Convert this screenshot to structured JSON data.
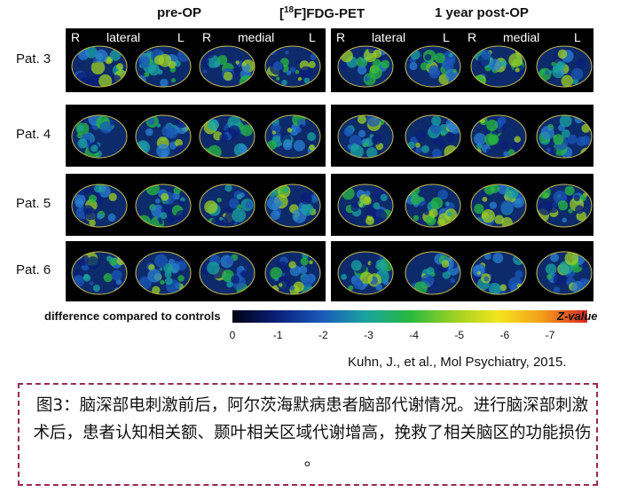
{
  "figure": {
    "headers": {
      "pre_op": "pre-OP",
      "pet": "[18F]FDG-PET",
      "post_op": "1 year post-OP"
    },
    "sublabels": {
      "r": "R",
      "lateral": "lateral",
      "l": "L",
      "medial": "medial"
    },
    "rows": [
      {
        "label": "Pat. 3"
      },
      {
        "label": "Pat. 4"
      },
      {
        "label": "Pat. 5"
      },
      {
        "label": "Pat. 6"
      }
    ],
    "colorbar": {
      "label": "difference compared to controls",
      "z_label": "Z-value",
      "ticks": [
        "0",
        "-1",
        "-2",
        "-3",
        "-4",
        "-5",
        "-6",
        "-7"
      ],
      "colors": [
        "#000010",
        "#0a1f7a",
        "#1b58b8",
        "#1aa3a0",
        "#27b840",
        "#9cd022",
        "#f3e51d",
        "#f39c1a",
        "#d7261e"
      ]
    },
    "panel_background": "#000000",
    "outline_color": "#c8bd4a"
  },
  "citation": "Kuhn, J., et al., Mol Psychiatry, 2015.",
  "caption": {
    "text": "图3：脑深部电刺激前后，阿尔茨海默病患者脑部代谢情况。进行脑深部刺激术后，患者认知相关额、颞叶相关区域代谢增高，挽救了相关脑区的功能损伤 。",
    "border_color": "#9a2a4f"
  }
}
